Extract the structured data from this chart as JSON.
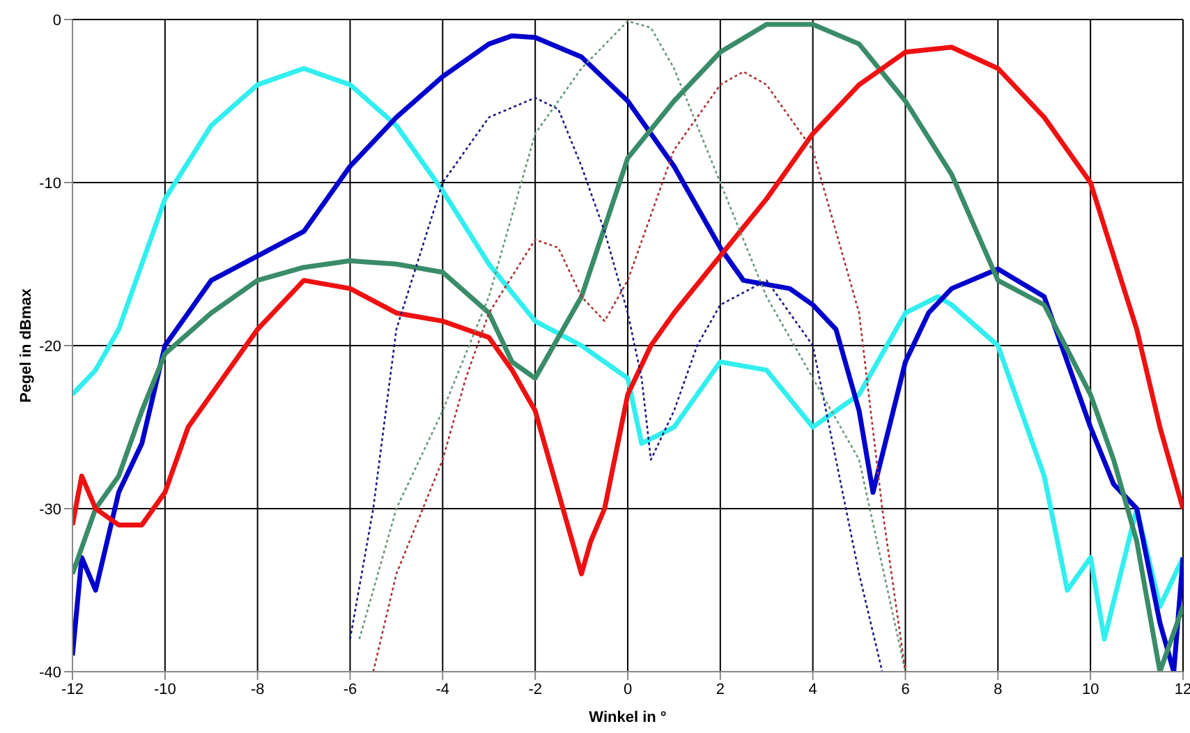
{
  "chart_data": {
    "type": "line",
    "xlabel": "Winkel in °",
    "ylabel": "Pegel in dBmax",
    "xlim": [
      -12,
      12
    ],
    "xticks": [
      -12,
      -10,
      -8,
      -6,
      -4,
      -2,
      0,
      2,
      4,
      6,
      8,
      10,
      12
    ],
    "ylim": [
      -40,
      0
    ],
    "yticks": [
      -40,
      -30,
      -20,
      -10,
      0
    ],
    "grid": true,
    "legend": false,
    "marker": "none",
    "series": [
      {
        "color": "#33eeee",
        "line_style": "solid",
        "x": [
          -12,
          -11.5,
          -11,
          -10,
          -9,
          -8,
          -7,
          -6,
          -5,
          -4,
          -3,
          -2,
          -1,
          0,
          0.3,
          1,
          2,
          3,
          4,
          5,
          6,
          6.7,
          7,
          8,
          9,
          9.5,
          10,
          10.3,
          11,
          11.5,
          12
        ],
        "values": [
          -23,
          -21.5,
          -19,
          -11,
          -6.5,
          -4,
          -3,
          -4,
          -6.5,
          -10.5,
          -15,
          -18.5,
          -20,
          -22,
          -26,
          -25,
          -21,
          -21.5,
          -25,
          -23,
          -18,
          -17,
          -17.5,
          -20,
          -28,
          -35,
          -33,
          -38,
          -30,
          -36,
          -33
        ]
      },
      {
        "color": "#0000cc",
        "line_style": "solid",
        "x": [
          -12,
          -11.8,
          -11.5,
          -11,
          -10.5,
          -10,
          -9.5,
          -9,
          -8,
          -7,
          -6,
          -5,
          -4,
          -3,
          -2.5,
          -2,
          -1,
          0,
          1,
          2,
          2.5,
          3.5,
          4,
          4.5,
          5,
          5.3,
          6,
          6.5,
          7,
          8,
          9,
          10,
          10.5,
          11,
          11.5,
          11.8,
          12
        ],
        "values": [
          -39,
          -33,
          -35,
          -29,
          -26,
          -20,
          -18,
          -16,
          -14.5,
          -13,
          -9,
          -6,
          -3.5,
          -1.5,
          -1,
          -1.1,
          -2.3,
          -5,
          -9,
          -14,
          -16,
          -16.5,
          -17.5,
          -19,
          -24,
          -29,
          -21,
          -18,
          -16.5,
          -15.3,
          -17,
          -25,
          -28.5,
          -30,
          -37,
          -40,
          -33
        ]
      },
      {
        "color": "#3a8c68",
        "line_style": "solid",
        "x": [
          -12,
          -11.5,
          -11,
          -10.5,
          -10,
          -9,
          -8,
          -7,
          -6,
          -5,
          -4,
          -3,
          -2.5,
          -2,
          -1,
          0,
          1,
          2,
          3,
          4,
          5,
          6,
          7,
          8,
          9,
          10,
          10.5,
          11,
          11.5,
          12
        ],
        "values": [
          -34,
          -30,
          -28,
          -24,
          -20.5,
          -18,
          -16,
          -15.2,
          -14.8,
          -15,
          -15.5,
          -18,
          -21,
          -22,
          -17,
          -8.5,
          -5,
          -2,
          -0.3,
          -0.3,
          -1.5,
          -5,
          -9.5,
          -16,
          -17.5,
          -23,
          -27,
          -32,
          -40,
          -36
        ]
      },
      {
        "color": "#ee1111",
        "line_style": "solid",
        "x": [
          -12,
          -11.8,
          -11.5,
          -11,
          -10.5,
          -10,
          -9.5,
          -9,
          -8,
          -7,
          -6,
          -5,
          -4,
          -3,
          -2.5,
          -2,
          -1.5,
          -1,
          -0.8,
          -0.5,
          0,
          0.5,
          1,
          2,
          3,
          4,
          5,
          6,
          7,
          8,
          9,
          10,
          11,
          11.5,
          12
        ],
        "values": [
          -31,
          -28,
          -30,
          -31,
          -31,
          -29,
          -25,
          -23,
          -19,
          -16,
          -16.5,
          -18,
          -18.5,
          -19.5,
          -21.5,
          -24,
          -29,
          -34,
          -32,
          -30,
          -23,
          -20,
          -18,
          -14.5,
          -11,
          -7,
          -4,
          -2,
          -1.7,
          -3,
          -6,
          -10,
          -19,
          -25,
          -30
        ]
      },
      {
        "color": "#1a1a80",
        "line_style": "dotted",
        "x": [
          -6,
          -5.5,
          -5,
          -4,
          -3,
          -2,
          -1.5,
          -1,
          -0.5,
          0,
          0.3,
          0.5,
          1,
          1.5,
          2,
          3,
          4,
          5,
          5.5
        ],
        "values": [
          -38,
          -30,
          -19,
          -10,
          -6,
          -4.8,
          -5.5,
          -9,
          -13,
          -18,
          -22,
          -27,
          -24,
          -20,
          -17.5,
          -16,
          -20,
          -34,
          -40
        ]
      },
      {
        "color": "#669977",
        "line_style": "dotted",
        "x": [
          -5.8,
          -5,
          -4,
          -3,
          -2,
          -1,
          0,
          0.5,
          1,
          2,
          3,
          4,
          5,
          6
        ],
        "values": [
          -38,
          -30,
          -24,
          -17,
          -7,
          -3,
          -0.1,
          -0.5,
          -3,
          -10,
          -17,
          -22,
          -27,
          -40
        ]
      },
      {
        "color": "#aa3333",
        "line_style": "dotted",
        "x": [
          -5.5,
          -5,
          -4,
          -3.5,
          -3,
          -2,
          -1.5,
          -1,
          -0.5,
          0,
          1,
          2,
          2.5,
          3,
          4,
          5,
          5.5,
          6
        ],
        "values": [
          -40,
          -34,
          -27,
          -22,
          -18,
          -13.5,
          -14,
          -17,
          -18.5,
          -16,
          -8,
          -4,
          -3.2,
          -4,
          -8,
          -18,
          -30,
          -40
        ]
      }
    ]
  }
}
